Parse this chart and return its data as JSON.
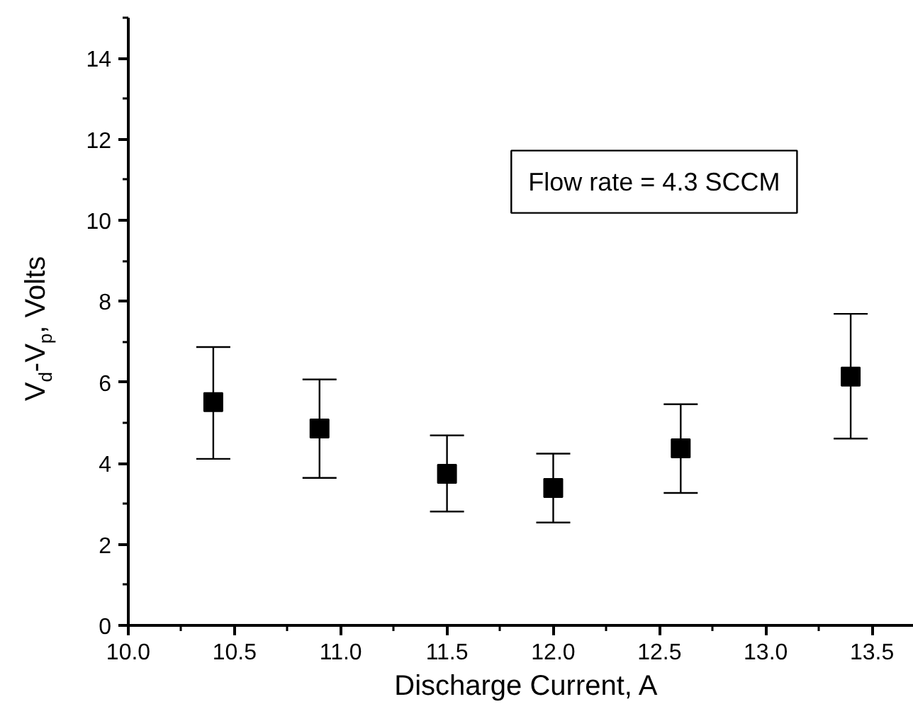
{
  "chart_data": {
    "type": "scatter",
    "xlabel": "Discharge Current, A",
    "ylabel": "V$_{d}$-V$_{p}$, Volts",
    "x": [
      10.4,
      10.9,
      11.5,
      12.0,
      12.6,
      13.4
    ],
    "values": [
      5.51,
      4.86,
      3.74,
      3.39,
      4.37,
      6.14
    ],
    "errors": [
      [
        4.11,
        6.87
      ],
      [
        3.64,
        6.07
      ],
      [
        2.81,
        4.69
      ],
      [
        2.54,
        4.24
      ],
      [
        3.27,
        5.46
      ],
      [
        4.61,
        7.69
      ]
    ],
    "color": "#000000",
    "marker": "square",
    "xlim": [
      10.0,
      13.75
    ],
    "ylim": [
      0,
      15
    ],
    "xticks": [
      {
        "value": 10.0,
        "label": "10.0"
      },
      {
        "value": 10.5,
        "label": "10.5"
      },
      {
        "value": 11.0,
        "label": "11.0"
      },
      {
        "value": 11.5,
        "label": "11.5"
      },
      {
        "value": 12.0,
        "label": "12.0"
      },
      {
        "value": 12.5,
        "label": "12.5"
      },
      {
        "value": 13.0,
        "label": "13.0"
      },
      {
        "value": 13.5,
        "label": "13.5"
      }
    ],
    "yticks": [
      0,
      2,
      4,
      6,
      8,
      10,
      12,
      14
    ],
    "annotations": [
      "Flow rate = 4.3 SCCM"
    ],
    "grid": false
  }
}
